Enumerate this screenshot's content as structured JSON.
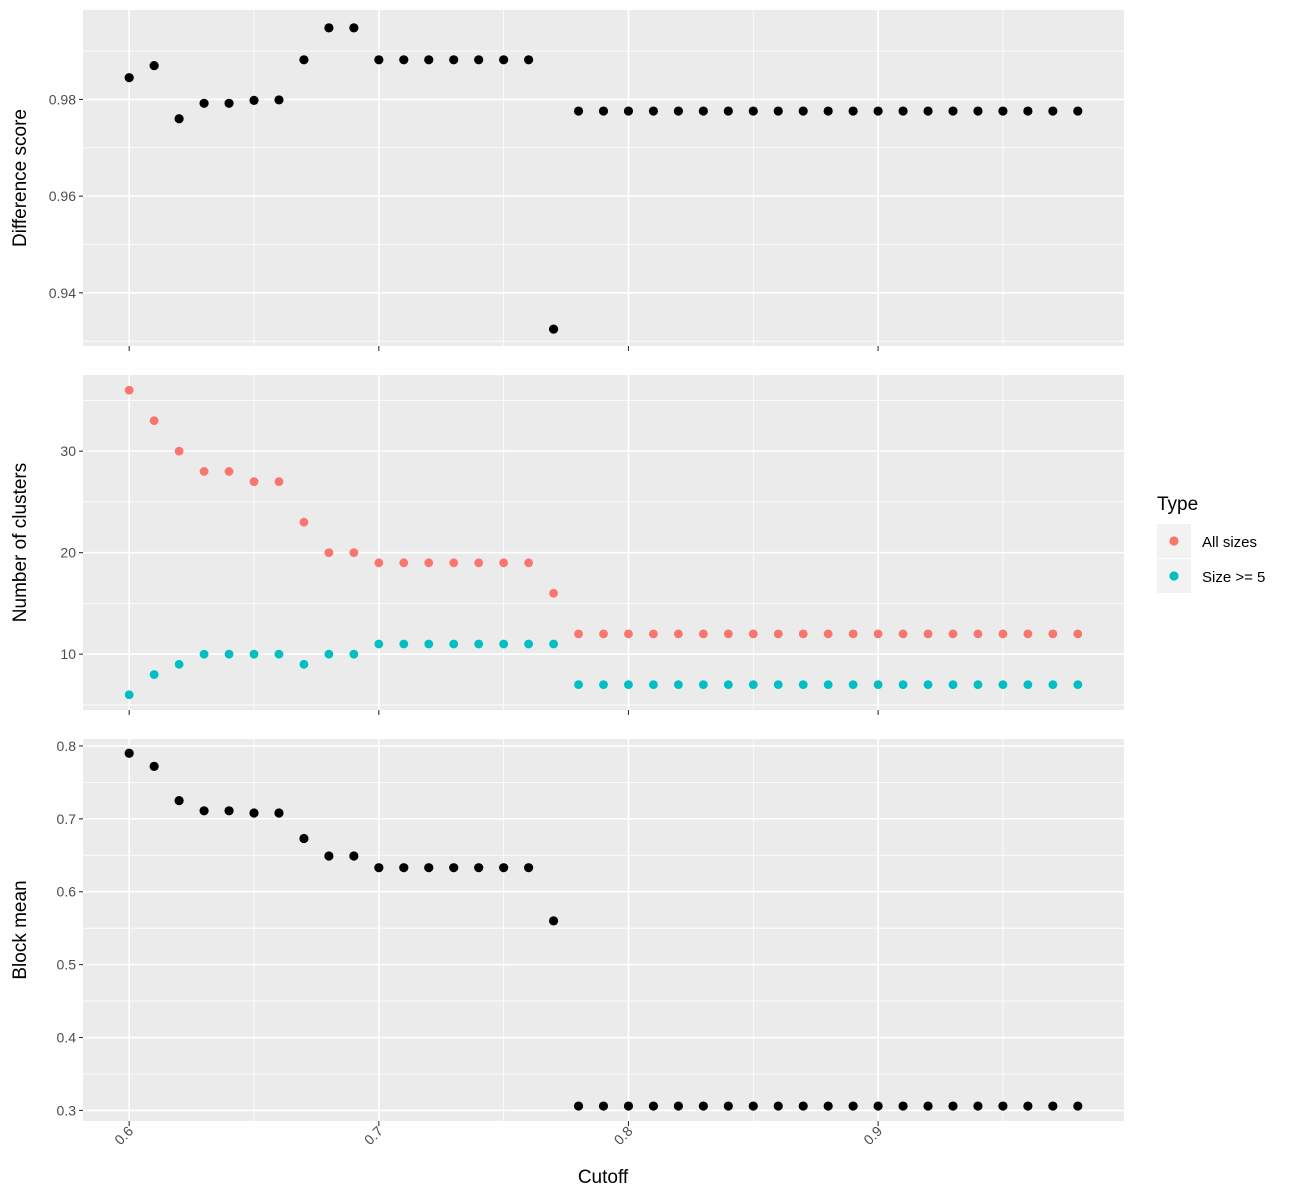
{
  "chart_data": {
    "type": "scatter",
    "facets": "stacked-vertically-shared-x",
    "xlabel": "Cutoff",
    "x_ticks": [
      "0.6",
      "0.7",
      "0.8",
      "0.9"
    ],
    "xlim": [
      0.5815,
      0.9985
    ],
    "x": [
      0.6,
      0.61,
      0.62,
      0.63,
      0.64,
      0.65,
      0.66,
      0.67,
      0.68,
      0.69,
      0.7,
      0.71,
      0.72,
      0.73,
      0.74,
      0.75,
      0.76,
      0.77,
      0.78,
      0.79,
      0.8,
      0.81,
      0.82,
      0.83,
      0.84,
      0.85,
      0.86,
      0.87,
      0.88,
      0.89,
      0.9,
      0.91,
      0.92,
      0.93,
      0.94,
      0.95,
      0.96,
      0.97,
      0.98
    ],
    "panels": [
      {
        "ylabel": "Difference score",
        "y_ticks": [
          "0.94",
          "0.96",
          "0.98"
        ],
        "ylim": [
          0.929,
          0.9985
        ],
        "series": [
          {
            "color": "#000000",
            "values": [
              0.9845,
              0.987,
              0.976,
              0.9792,
              0.9792,
              0.9798,
              0.9799,
              0.9882,
              0.9948,
              0.9948,
              0.9882,
              0.9882,
              0.9882,
              0.9882,
              0.9882,
              0.9882,
              0.9882,
              0.9325,
              0.9776,
              0.9776,
              0.9776,
              0.9776,
              0.9776,
              0.9776,
              0.9776,
              0.9776,
              0.9776,
              0.9776,
              0.9776,
              0.9776,
              0.9776,
              0.9776,
              0.9776,
              0.9776,
              0.9776,
              0.9776,
              0.9776,
              0.9776,
              0.9776
            ]
          }
        ]
      },
      {
        "ylabel": "Number of clusters",
        "y_ticks": [
          "10",
          "20",
          "30"
        ],
        "ylim": [
          4.5,
          37.5
        ],
        "series": [
          {
            "name": "All sizes",
            "color": "#f8766d",
            "values": [
              36,
              33,
              30,
              28,
              28,
              27,
              27,
              23,
              20,
              20,
              19,
              19,
              19,
              19,
              19,
              19,
              19,
              16,
              12,
              12,
              12,
              12,
              12,
              12,
              12,
              12,
              12,
              12,
              12,
              12,
              12,
              12,
              12,
              12,
              12,
              12,
              12,
              12,
              12
            ]
          },
          {
            "name": "Size >= 5",
            "color": "#00bfc4",
            "values": [
              6,
              8,
              9,
              10,
              10,
              10,
              10,
              9,
              10,
              10,
              11,
              11,
              11,
              11,
              11,
              11,
              11,
              11,
              7,
              7,
              7,
              7,
              7,
              7,
              7,
              7,
              7,
              7,
              7,
              7,
              7,
              7,
              7,
              7,
              7,
              7,
              7,
              7,
              7
            ]
          }
        ]
      },
      {
        "ylabel": "Block mean",
        "y_ticks": [
          "0.3",
          "0.4",
          "0.5",
          "0.6",
          "0.7",
          "0.8"
        ],
        "ylim": [
          0.2855,
          0.8095
        ],
        "series": [
          {
            "color": "#000000",
            "values": [
              0.79,
              0.772,
              0.725,
              0.711,
              0.711,
              0.708,
              0.708,
              0.673,
              0.649,
              0.649,
              0.633,
              0.633,
              0.633,
              0.633,
              0.633,
              0.633,
              0.633,
              0.56,
              0.306,
              0.306,
              0.306,
              0.306,
              0.306,
              0.306,
              0.306,
              0.306,
              0.306,
              0.306,
              0.306,
              0.306,
              0.306,
              0.306,
              0.306,
              0.306,
              0.306,
              0.306,
              0.306,
              0.306,
              0.306
            ]
          }
        ]
      }
    ],
    "legend": {
      "title": "Type",
      "placement": "right",
      "entries": [
        {
          "label": "All sizes",
          "color": "#f8766d"
        },
        {
          "label": "Size >= 5",
          "color": "#00bfc4"
        }
      ]
    },
    "grid": true,
    "background": "#ebebeb"
  }
}
